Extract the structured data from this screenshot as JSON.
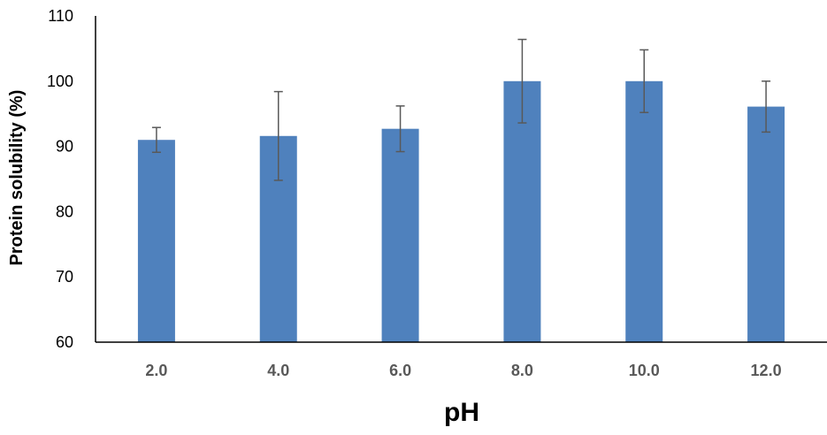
{
  "chart_data": {
    "type": "bar",
    "categories": [
      "2.0",
      "4.0",
      "6.0",
      "8.0",
      "10.0",
      "12.0"
    ],
    "values": [
      91.0,
      91.6,
      92.7,
      100.0,
      100.0,
      96.1
    ],
    "error": [
      1.9,
      6.8,
      3.5,
      6.4,
      4.8,
      3.9
    ],
    "xlabel": "pH",
    "ylabel": "Protein solubility (%)",
    "ylim": [
      60,
      110
    ],
    "yticks": [
      "60",
      "70",
      "80",
      "90",
      "100",
      "110"
    ],
    "grid": false,
    "colors": {
      "bar": "#4f81bd",
      "error_bar": "#595959",
      "axis": "#000000",
      "x_tick_text": "#595959"
    }
  }
}
